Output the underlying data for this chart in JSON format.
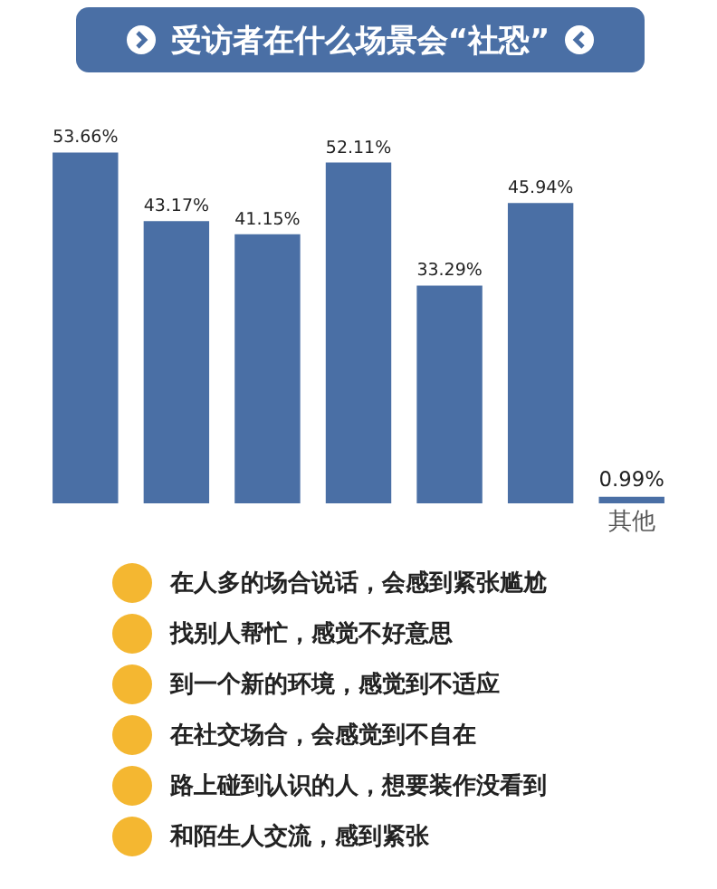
{
  "chart_data": {
    "type": "bar",
    "title": "受访者在什么场景会“社恐”",
    "categories": [
      null,
      null,
      null,
      null,
      null,
      null,
      "其他"
    ],
    "values": [
      53.66,
      43.17,
      41.15,
      52.11,
      33.29,
      45.94,
      0.99
    ],
    "value_labels": [
      "53.66%",
      "43.17%",
      "41.15%",
      "52.11%",
      "33.29%",
      "45.94%",
      "0.99%"
    ],
    "color": "#4a6fa5",
    "grid": false,
    "annotations": [
      "在人多的场合说话，会感到紧张尴尬",
      "找别人帮忙，感觉不好意思",
      "到一个新的环境，感觉到不适应",
      "在社交场合，会感觉到不自在",
      "路上碰到认识的人，想要装作没看到",
      "和陌生人交流，感到紧张"
    ]
  }
}
